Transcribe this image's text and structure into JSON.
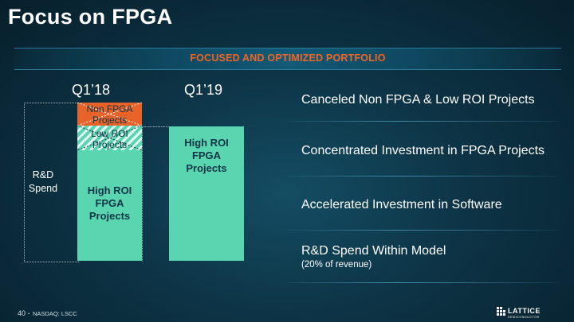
{
  "slide": {
    "title": "Focus on FPGA",
    "banner": "FOCUSED AND OPTIMIZED PORTFOLIO"
  },
  "chart": {
    "columns": [
      "Q1’18",
      "Q1’19"
    ],
    "axis_label": "R&D Spend",
    "q118": {
      "segments": [
        {
          "label": "Non FPGA Projects",
          "color": "#e8632a"
        },
        {
          "label": "Low ROI Projects",
          "color": "#59d6b0"
        },
        {
          "label": "High ROI FPGA Projects",
          "color": "#59d6b0"
        }
      ]
    },
    "q119": {
      "segments": [
        {
          "label": "High ROI FPGA Projects",
          "color": "#59d6b0"
        }
      ]
    }
  },
  "bullets": [
    {
      "text": "Canceled Non FPGA & Low ROI Projects"
    },
    {
      "text": "Concentrated Investment in FPGA Projects"
    },
    {
      "text": "Accelerated Investment in Software"
    },
    {
      "text": "R&D Spend Within Model",
      "note": "(20% of revenue)"
    }
  ],
  "footer": {
    "page": "40 -",
    "ticker": "NASDAQ: LSCC",
    "logo": "LATTICE SEMICONDUCTOR"
  },
  "colors": {
    "accent_orange": "#f26522",
    "teal": "#59d6b0",
    "background": "#0d3446"
  }
}
